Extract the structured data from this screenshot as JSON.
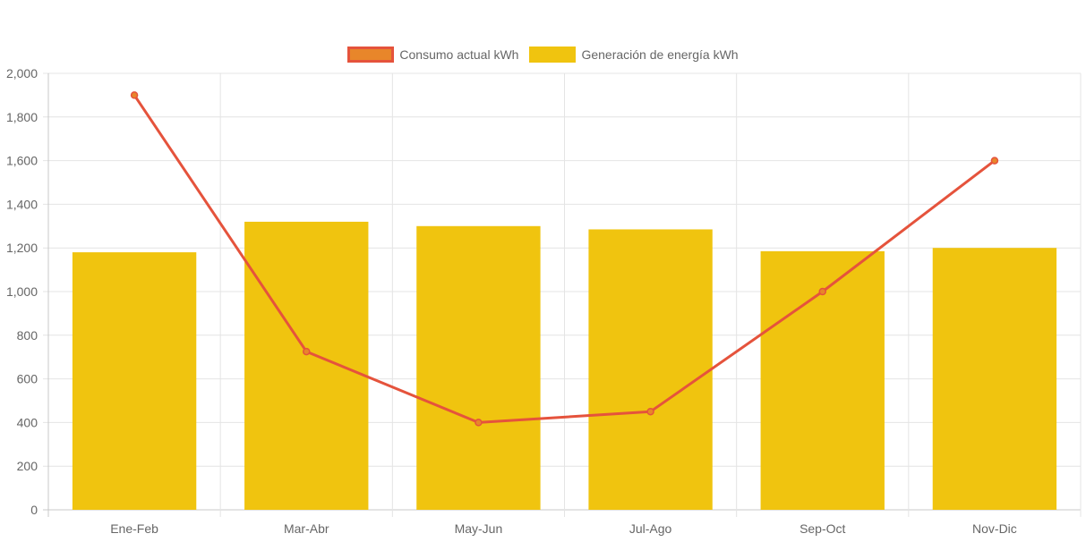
{
  "chart_data": {
    "type": "bar",
    "categories": [
      "Ene-Feb",
      "Mar-Abr",
      "May-Jun",
      "Jul-Ago",
      "Sep-Oct",
      "Nov-Dic"
    ],
    "series": [
      {
        "name": "Consumo actual kWh",
        "type": "line",
        "values": [
          1900,
          725,
          400,
          450,
          1000,
          1600
        ],
        "color": "#e5533c",
        "fill": "#e8862a"
      },
      {
        "name": "Generación de energía kWh",
        "type": "bar",
        "values": [
          1180,
          1320,
          1300,
          1285,
          1185,
          1200
        ],
        "color": "#f0c40f"
      }
    ],
    "ylim": [
      0,
      2000
    ],
    "yticks": [
      "0",
      "200",
      "400",
      "600",
      "800",
      "1,000",
      "1,200",
      "1,400",
      "1,600",
      "1,800",
      "2,000"
    ],
    "grid": true,
    "legend_position": "top"
  }
}
